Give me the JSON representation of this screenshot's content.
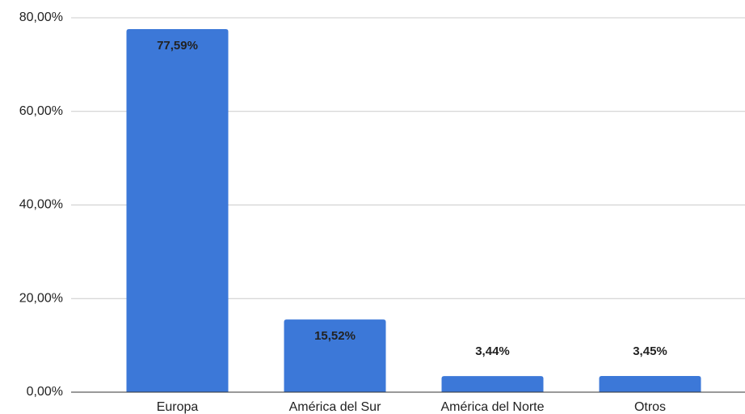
{
  "chart_data": {
    "type": "bar",
    "categories": [
      "Europa",
      "América del Sur",
      "América del Norte",
      "Otros"
    ],
    "values": [
      77.59,
      15.52,
      3.44,
      3.45
    ],
    "value_labels": [
      "77,59%",
      "15,52%",
      "3,44%",
      "3,45%"
    ],
    "color": "#3c78d8",
    "ylim": [
      0,
      80
    ],
    "yticks": [
      {
        "value": 0,
        "label": "0,00%"
      },
      {
        "value": 20,
        "label": "20,00%"
      },
      {
        "value": 40,
        "label": "40,00%"
      },
      {
        "value": 60,
        "label": "60,00%"
      },
      {
        "value": 80,
        "label": "80,00%"
      }
    ],
    "grid": true
  }
}
